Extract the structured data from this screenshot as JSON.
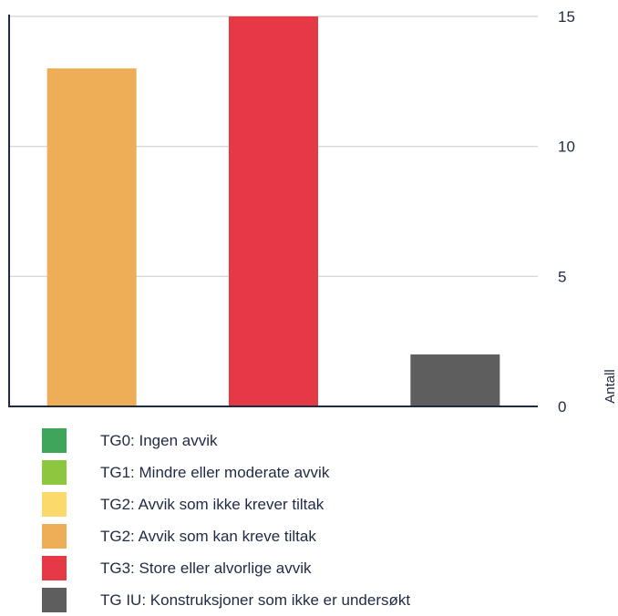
{
  "chart_data": {
    "type": "bar",
    "ylabel": "Antall",
    "ylim": [
      0,
      15
    ],
    "yticks": [
      0,
      5,
      10,
      15
    ],
    "grid": true,
    "axis_position": "right",
    "legend_position": "bottom",
    "bars": [
      {
        "legend_index": 3,
        "value": 13
      },
      {
        "legend_index": 4,
        "value": 15
      },
      {
        "legend_index": 5,
        "value": 2
      }
    ],
    "legend": [
      {
        "label": "TG0: Ingen avvik",
        "color": "#3fa55a"
      },
      {
        "label": "TG1: Mindre eller moderate avvik",
        "color": "#8dc63f"
      },
      {
        "label": "TG2: Avvik som ikke krever tiltak",
        "color": "#fbd96a"
      },
      {
        "label": "TG2: Avvik som kan kreve tiltak",
        "color": "#eeae57"
      },
      {
        "label": "TG3: Store eller alvorlige avvik",
        "color": "#e63946"
      },
      {
        "label": "TG IU: Konstruksjoner som ikke er undersøkt",
        "color": "#5e5e5e"
      }
    ]
  }
}
